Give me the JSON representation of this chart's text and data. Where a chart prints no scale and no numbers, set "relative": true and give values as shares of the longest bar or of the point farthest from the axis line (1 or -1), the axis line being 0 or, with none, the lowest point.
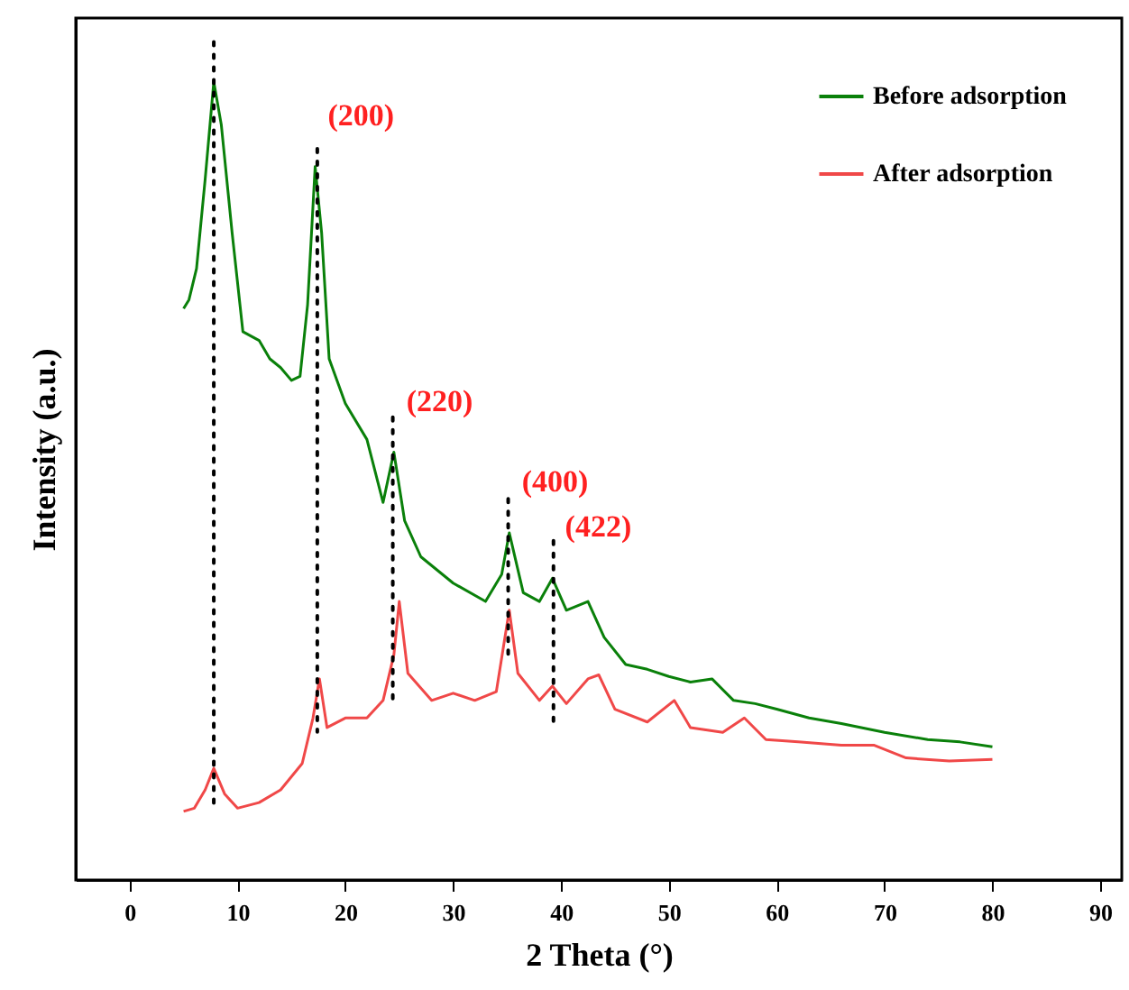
{
  "chart_data": {
    "type": "line",
    "relative": true,
    "xlabel": "2 Theta (°)",
    "ylabel": "Intensity (a.u.)",
    "xlim": [
      -5,
      92
    ],
    "xticks": [
      0,
      10,
      20,
      30,
      40,
      50,
      60,
      70,
      80,
      90
    ],
    "legend": "top right",
    "line_style": "solid",
    "series": [
      {
        "name": "Before adsorption",
        "color": "#0a800a",
        "x": [
          5.0,
          5.5,
          6.2,
          7.0,
          7.8,
          8.5,
          9.5,
          10.5,
          12,
          13,
          14,
          15,
          15.8,
          16.5,
          17.2,
          17.8,
          18.5,
          20,
          22,
          23.5,
          24.5,
          25.5,
          27,
          30,
          33,
          34.5,
          35.2,
          36.5,
          38,
          39.2,
          40.5,
          42.5,
          44,
          46,
          48,
          50,
          52,
          54,
          56,
          58,
          60,
          63,
          66,
          70,
          74,
          77,
          80
        ],
        "values": [
          0.716,
          0.727,
          0.766,
          0.878,
          1.0,
          0.946,
          0.811,
          0.687,
          0.676,
          0.653,
          0.642,
          0.626,
          0.631,
          0.721,
          0.894,
          0.811,
          0.653,
          0.597,
          0.552,
          0.473,
          0.536,
          0.45,
          0.405,
          0.372,
          0.349,
          0.383,
          0.435,
          0.36,
          0.349,
          0.378,
          0.338,
          0.349,
          0.304,
          0.27,
          0.264,
          0.255,
          0.248,
          0.252,
          0.225,
          0.221,
          0.214,
          0.203,
          0.196,
          0.185,
          0.176,
          0.173,
          0.167
        ]
      },
      {
        "name": "After adsorption",
        "color": "#f04848",
        "x": [
          5.0,
          6,
          7,
          7.8,
          8.8,
          10,
          12,
          14,
          16,
          17.0,
          17.6,
          18.3,
          20,
          22,
          23.5,
          24.5,
          25,
          25.8,
          28,
          30,
          32,
          34,
          35.2,
          36,
          38,
          39.2,
          40.5,
          42.5,
          43.5,
          45,
          48,
          50.5,
          52,
          55,
          57,
          59,
          62,
          66,
          69,
          72,
          76,
          80
        ],
        "values": [
          0.086,
          0.09,
          0.113,
          0.14,
          0.108,
          0.09,
          0.097,
          0.113,
          0.146,
          0.203,
          0.252,
          0.191,
          0.203,
          0.203,
          0.225,
          0.282,
          0.349,
          0.259,
          0.225,
          0.234,
          0.225,
          0.236,
          0.338,
          0.259,
          0.225,
          0.243,
          0.221,
          0.252,
          0.257,
          0.214,
          0.198,
          0.225,
          0.191,
          0.185,
          0.203,
          0.176,
          0.173,
          0.169,
          0.169,
          0.153,
          0.149,
          0.151
        ]
      }
    ],
    "ref_lines": [
      {
        "axis": "x",
        "value": 7.8,
        "line_style": "dotted"
      },
      {
        "axis": "x",
        "value": 17.4,
        "line_style": "dotted"
      },
      {
        "axis": "x",
        "value": 24.4,
        "line_style": "dotted"
      },
      {
        "axis": "x",
        "value": 35.1,
        "line_style": "dotted"
      },
      {
        "axis": "x",
        "value": 39.3,
        "line_style": "dotted"
      }
    ],
    "annotations": [
      {
        "text": "(200)",
        "x": 17.2,
        "y": 0.894
      },
      {
        "text": "(220)",
        "x": 24.5,
        "y": 0.536
      },
      {
        "text": "(400)",
        "x": 35.2,
        "y": 0.435
      },
      {
        "text": "(422)",
        "x": 39.2,
        "y": 0.378
      }
    ]
  }
}
